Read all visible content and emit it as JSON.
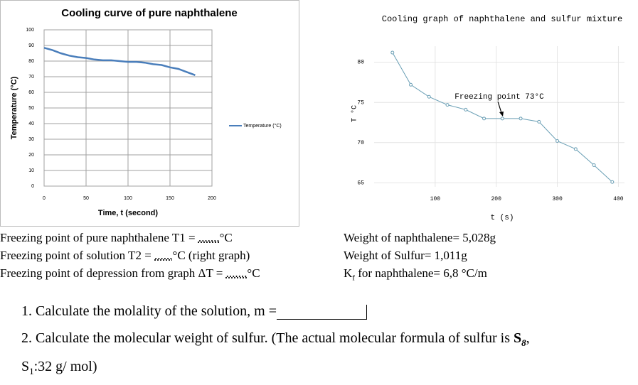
{
  "chart_data": [
    {
      "type": "line",
      "title": "Cooling curve of pure naphthalene",
      "x_label": "Time, t (second)",
      "y_label": "Temperature (°C)",
      "x": [
        0,
        10,
        20,
        30,
        40,
        50,
        60,
        70,
        80,
        90,
        100,
        110,
        120,
        130,
        140,
        150,
        160,
        170,
        180
      ],
      "series": [
        {
          "name": "Temperature (°C)",
          "color": "#4a7ebb",
          "values": [
            88.5,
            87,
            85,
            83.5,
            82.5,
            82,
            81,
            80.5,
            80.5,
            80,
            79.5,
            79.5,
            79,
            78,
            77.5,
            76,
            75,
            73,
            71
          ]
        }
      ],
      "xlim": [
        0,
        200
      ],
      "xticks": [
        0,
        50,
        100,
        150,
        200
      ],
      "ylim": [
        0,
        100
      ],
      "yticks": [
        0,
        10,
        20,
        30,
        40,
        50,
        60,
        70,
        80,
        90,
        100
      ],
      "grid": true,
      "markers": false,
      "legend": "right"
    },
    {
      "type": "line",
      "title": "Cooling graph of naphthalene and sulfur mixture",
      "x_label": "t (s)",
      "y_label": "T °C",
      "annotation": "Freezing point 73°C",
      "x": [
        30,
        60,
        90,
        120,
        150,
        180,
        210,
        240,
        270,
        300,
        330,
        360,
        390
      ],
      "series": [
        {
          "color": "#6a9fb5",
          "values": [
            81.2,
            77.2,
            75.7,
            74.7,
            74.1,
            73,
            73,
            73,
            72.6,
            70.2,
            69.2,
            67.2,
            65.1
          ]
        }
      ],
      "xlim": [
        0,
        410
      ],
      "xticks": [
        100,
        200,
        300,
        400
      ],
      "ylim": [
        64.5,
        82
      ],
      "yticks": [
        65,
        70,
        75,
        80
      ],
      "grid": true,
      "markers": true
    }
  ],
  "document": {
    "notes_left": [
      {
        "text": "Freezing point of pure naphthalene T1 = ",
        "blank": ".......",
        "unit": "°C"
      },
      {
        "text": "Freezing point of solution T2 = ",
        "blank": "......",
        "unit": "°C (right graph)"
      },
      {
        "text": "Freezing point of depression from graph ΔT = ",
        "blank": ".......",
        "unit": "°C"
      }
    ],
    "notes_right": [
      {
        "text": "Weight of naphthalene= 5,028g"
      },
      {
        "text": "Weight of Sulfur= 1,011g"
      },
      {
        "symbol": "K",
        "subscript": "f",
        "text": " for naphthalene= 6,8 °C/m"
      }
    ],
    "question_1": "1. Calculate the molality of the solution, m =",
    "question_2": {
      "text": "2. Calculate the molecular weight of sulfur. (The actual molecular formula of sulfur is ",
      "symbol": "S",
      "subscript": "8",
      "end": ",",
      "symbol_2": "S",
      "subscript_2": "1",
      "text_2": ":32 g/ mol)"
    }
  }
}
